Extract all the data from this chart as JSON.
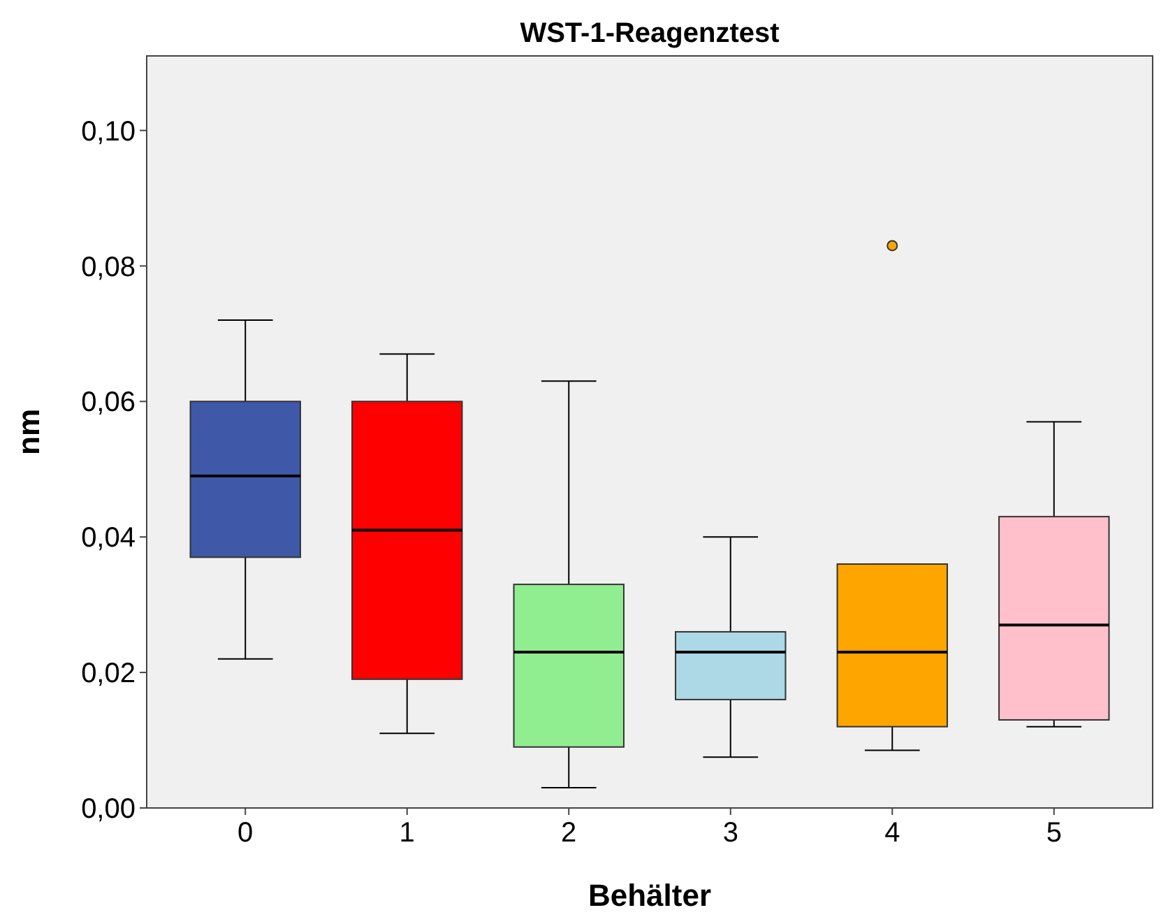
{
  "chart_data": {
    "type": "box",
    "title": "WST-1-Reagenztest",
    "xlabel": "Behälter",
    "ylabel": "nm",
    "categories": [
      "0",
      "1",
      "2",
      "3",
      "4",
      "5"
    ],
    "colors": [
      "#3f58a8",
      "#ff0000",
      "#90ee90",
      "#add8e6",
      "#ffa500",
      "#ffc0cb"
    ],
    "boxes": [
      {
        "low": 0.022,
        "q1": 0.037,
        "median": 0.049,
        "q3": 0.06,
        "high": 0.072
      },
      {
        "low": 0.011,
        "q1": 0.019,
        "median": 0.041,
        "q3": 0.06,
        "high": 0.067
      },
      {
        "low": 0.003,
        "q1": 0.009,
        "median": 0.023,
        "q3": 0.033,
        "high": 0.063
      },
      {
        "low": 0.0075,
        "q1": 0.016,
        "median": 0.023,
        "q3": 0.026,
        "high": 0.04
      },
      {
        "low": 0.0085,
        "q1": 0.012,
        "median": 0.023,
        "q3": 0.036,
        "high": 0.036,
        "outliers": [
          0.083
        ]
      },
      {
        "low": 0.012,
        "q1": 0.013,
        "median": 0.027,
        "q3": 0.043,
        "high": 0.057
      }
    ],
    "ylim": [
      0,
      0.111
    ],
    "yticks": [
      {
        "value": 0,
        "label": "0,00"
      },
      {
        "value": 0.02,
        "label": "0,02"
      },
      {
        "value": 0.04,
        "label": "0,04"
      },
      {
        "value": 0.06,
        "label": "0,06"
      },
      {
        "value": 0.08,
        "label": "0,08"
      },
      {
        "value": 0.1,
        "label": "0,10"
      }
    ],
    "grid": false
  }
}
